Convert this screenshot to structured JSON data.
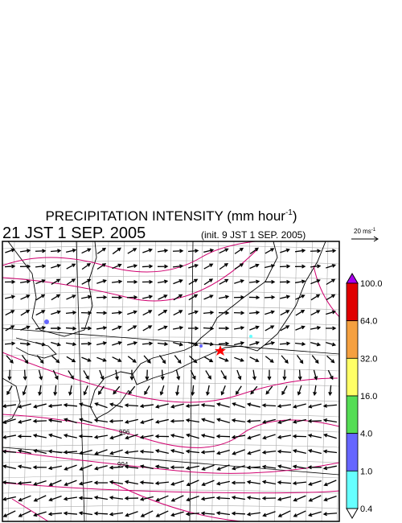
{
  "header": {
    "title": {
      "text": "PRECIPITATION INTENSITY (mm hour",
      "superscript": "-1",
      "closing": ")"
    },
    "valid_time": "21 JST 1 SEP. 2005",
    "init_time": "(init. 9 JST 1 SEP. 2005)"
  },
  "reference_vector": {
    "text": "20 ms",
    "superscript": "-1"
  },
  "colorbar": {
    "labels": [
      "100.0",
      "64.0",
      "32.0",
      "16.0",
      "4.0",
      "1.0",
      "0.4"
    ],
    "colors": [
      "#e00000",
      "#f5a040",
      "#ffff66",
      "#55dd55",
      "#6666ff",
      "#66ffff"
    ],
    "over_color": "#aa00ee",
    "under_color": "#ffffff"
  },
  "contour_labels": [
    "996",
    "994"
  ]
}
